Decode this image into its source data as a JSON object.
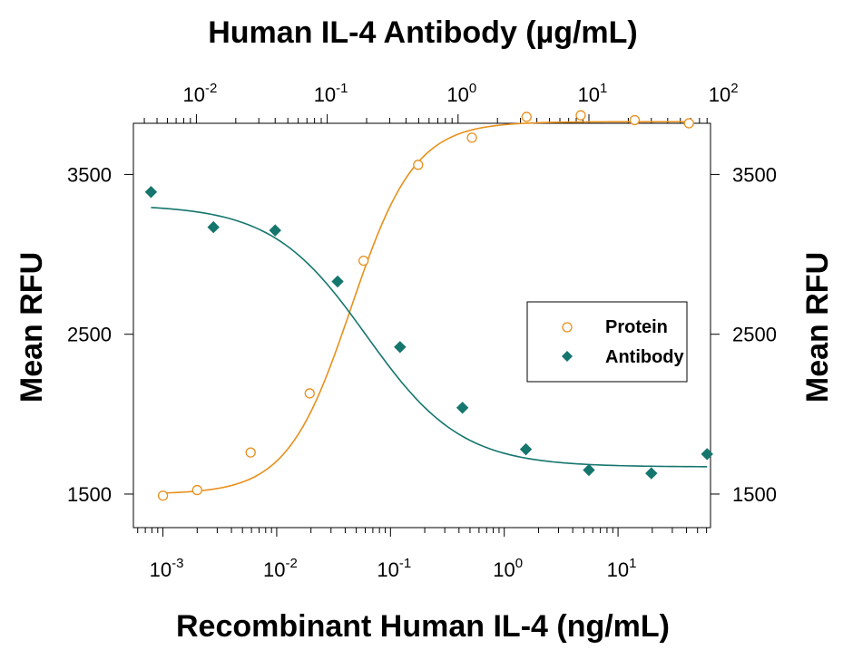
{
  "chart_data": {
    "type": "scatter",
    "top_title": "Human IL-4 Antibody (µg/mL)",
    "xlabel": "Recombinant Human IL-4 (ng/mL)",
    "ylabel_left": "Mean RFU",
    "ylabel_right": "Mean RFU",
    "x_scale": "log",
    "x_range_bottom": [
      0.00055,
      65
    ],
    "x_range_top": [
      0.0033,
      85
    ],
    "y_range": [
      1290,
      3820
    ],
    "y_ticks": [
      1500,
      2500,
      3500
    ],
    "y_tick_labels": [
      "1500",
      "2500",
      "3500"
    ],
    "x_bottom_ticks": [
      {
        "value": 0.001,
        "base": "10",
        "exp": "-3"
      },
      {
        "value": 0.01,
        "base": "10",
        "exp": "-2"
      },
      {
        "value": 0.1,
        "base": "10",
        "exp": "-1"
      },
      {
        "value": 1,
        "base": "10",
        "exp": "0"
      },
      {
        "value": 10,
        "base": "10",
        "exp": "1"
      }
    ],
    "x_top_ticks": [
      {
        "value": 0.01,
        "base": "10",
        "exp": "-2"
      },
      {
        "value": 0.1,
        "base": "10",
        "exp": "-1"
      },
      {
        "value": 1,
        "base": "10",
        "exp": "0"
      },
      {
        "value": 10,
        "base": "10",
        "exp": "1"
      },
      {
        "value": 100,
        "base": "10",
        "exp": "2"
      }
    ],
    "legend_position": "right-middle",
    "grid": false,
    "series": [
      {
        "name": "Protein",
        "axis": "bottom",
        "marker": "open-circle",
        "color": "#E8901C",
        "points": [
          [
            0.001,
            1490
          ],
          [
            0.002,
            1525
          ],
          [
            0.0059,
            1760
          ],
          [
            0.0195,
            2130
          ],
          [
            0.058,
            2960
          ],
          [
            0.175,
            3560
          ],
          [
            0.52,
            3730
          ],
          [
            1.57,
            3860
          ],
          [
            4.7,
            3870
          ],
          [
            14.0,
            3840
          ],
          [
            42.0,
            3820
          ]
        ],
        "fit": {
          "bottom": 1500,
          "top": 3830,
          "ec50": 0.045,
          "hill": 1.55
        }
      },
      {
        "name": "Antibody",
        "axis": "top",
        "marker": "filled-diamond",
        "color": "#15766E",
        "points": [
          [
            0.0045,
            3390
          ],
          [
            0.0135,
            3170
          ],
          [
            0.04,
            3150
          ],
          [
            0.12,
            2830
          ],
          [
            0.36,
            2420
          ],
          [
            1.08,
            2040
          ],
          [
            3.3,
            1780
          ],
          [
            10.0,
            1650
          ],
          [
            30.0,
            1630
          ],
          [
            80.0,
            1750
          ]
        ],
        "fit": {
          "top": 3310,
          "bottom": 1670,
          "ec50": 0.2,
          "hill": 1.2
        }
      }
    ]
  }
}
